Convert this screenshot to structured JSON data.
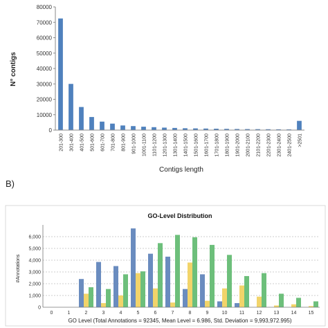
{
  "panel_b_label": "B)",
  "chart_data": [
    {
      "type": "bar",
      "title": "",
      "xlabel": "Contigs length",
      "ylabel": "N° contigs",
      "ylim": [
        0,
        80000
      ],
      "yticks": [
        "0",
        "10000",
        "20000",
        "30000",
        "40000",
        "50000",
        "60000",
        "70000",
        "80000"
      ],
      "grid": false,
      "categories": [
        "201-300",
        "301-400",
        "401-500",
        "501-600",
        "601-700",
        "701-800",
        "801-900",
        "901-1000",
        "1001-1100",
        "1101-1200",
        "1201-1300",
        "1301-1400",
        "1401-1500",
        "1501-1600",
        "1601-1700",
        "1701-1800",
        "1801-1900",
        "1901-2000",
        "2001-2100",
        "2101-2200",
        "2201-2300",
        "2301-2400",
        "2401-2500",
        ">2501"
      ],
      "values": [
        72500,
        30000,
        15000,
        8500,
        5500,
        4200,
        3000,
        2600,
        2200,
        1900,
        1600,
        1400,
        1200,
        1100,
        1000,
        900,
        800,
        700,
        650,
        600,
        550,
        500,
        450,
        6000
      ],
      "colors": {
        "bar": "#4f81bd"
      }
    },
    {
      "type": "bar",
      "title": "GO-Level Distribution",
      "xlabel": "GO Level  (Total Annotations = 92345, Mean Level = 6.986, Std. Deviation = 9,993,972.995)",
      "ylabel": "#Annotations",
      "ylim": [
        0,
        7000
      ],
      "yticks": [
        "0",
        "1,000",
        "2,000",
        "3,000",
        "4,000",
        "5,000",
        "6,000"
      ],
      "grid": true,
      "categories": [
        "0",
        "1",
        "2",
        "3",
        "4",
        "5",
        "6",
        "7",
        "8",
        "9",
        "10",
        "11",
        "12",
        "13",
        "14",
        "15"
      ],
      "series": [
        {
          "color": "#6a8cbf",
          "values": [
            0,
            0,
            2400,
            3850,
            3500,
            6700,
            4550,
            4300,
            1550,
            2800,
            500,
            350,
            0,
            0,
            0,
            0
          ]
        },
        {
          "color": "#f2d46a",
          "values": [
            0,
            0,
            1150,
            350,
            1000,
            2900,
            1600,
            400,
            3800,
            550,
            1600,
            1850,
            900,
            150,
            250,
            100
          ]
        },
        {
          "color": "#6dbf7b",
          "values": [
            0,
            0,
            1700,
            1550,
            2800,
            3050,
            5450,
            6150,
            5950,
            5300,
            4450,
            2650,
            2900,
            1150,
            800,
            500
          ]
        }
      ]
    }
  ]
}
